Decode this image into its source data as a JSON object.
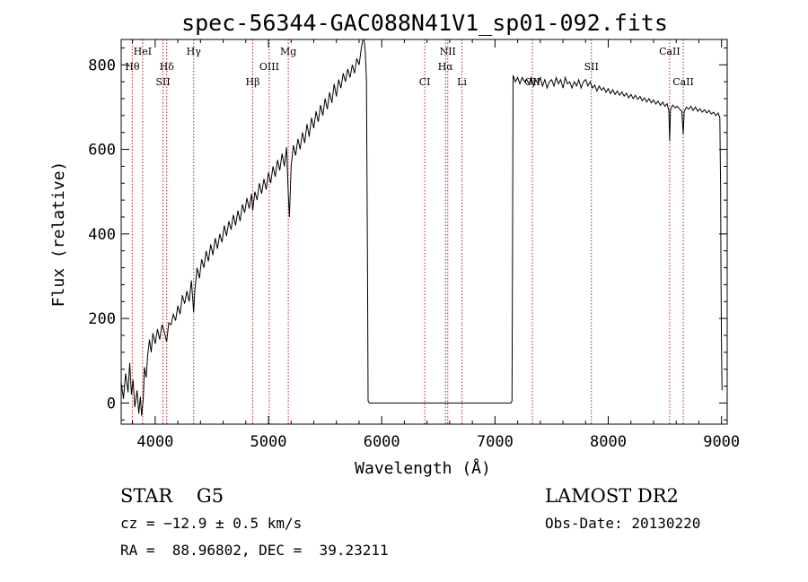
{
  "chart_data": {
    "type": "line",
    "title": "spec-56344-GAC088N41V1_sp01-092.fits",
    "xlabel": "Wavelength (Å)",
    "ylabel": "Flux (relative)",
    "xlim": [
      3700,
      9050
    ],
    "ylim": [
      -50,
      860
    ],
    "x_ticks": [
      4000,
      5000,
      6000,
      7000,
      8000,
      9000
    ],
    "y_ticks": [
      0,
      200,
      400,
      600,
      800
    ],
    "grid": false,
    "legend": "none",
    "colors": {
      "spectrum": "#000000",
      "line_markers": "#b22222"
    },
    "series": [
      {
        "points": [
          [
            3700,
            50
          ],
          [
            3720,
            10
          ],
          [
            3740,
            70
          ],
          [
            3760,
            25
          ],
          [
            3775,
            95
          ],
          [
            3790,
            20
          ],
          [
            3805,
            55
          ],
          [
            3820,
            -10
          ],
          [
            3840,
            30
          ],
          [
            3855,
            -25
          ],
          [
            3870,
            15
          ],
          [
            3880,
            -30
          ],
          [
            3895,
            10
          ],
          [
            3905,
            85
          ],
          [
            3920,
            60
          ],
          [
            3935,
            115
          ],
          [
            3950,
            150
          ],
          [
            3965,
            120
          ],
          [
            3980,
            165
          ],
          [
            4000,
            140
          ],
          [
            4020,
            175
          ],
          [
            4040,
            150
          ],
          [
            4060,
            185
          ],
          [
            4080,
            170
          ],
          [
            4101,
            145
          ],
          [
            4120,
            190
          ],
          [
            4140,
            185
          ],
          [
            4160,
            210
          ],
          [
            4180,
            195
          ],
          [
            4200,
            230
          ],
          [
            4220,
            210
          ],
          [
            4240,
            255
          ],
          [
            4260,
            235
          ],
          [
            4280,
            265
          ],
          [
            4300,
            240
          ],
          [
            4320,
            290
          ],
          [
            4340,
            215
          ],
          [
            4350,
            265
          ],
          [
            4370,
            320
          ],
          [
            4390,
            295
          ],
          [
            4410,
            340
          ],
          [
            4430,
            320
          ],
          [
            4450,
            360
          ],
          [
            4470,
            335
          ],
          [
            4490,
            375
          ],
          [
            4510,
            350
          ],
          [
            4530,
            390
          ],
          [
            4550,
            365
          ],
          [
            4570,
            400
          ],
          [
            4590,
            380
          ],
          [
            4610,
            420
          ],
          [
            4630,
            395
          ],
          [
            4650,
            430
          ],
          [
            4670,
            410
          ],
          [
            4690,
            445
          ],
          [
            4710,
            420
          ],
          [
            4730,
            455
          ],
          [
            4750,
            430
          ],
          [
            4770,
            470
          ],
          [
            4790,
            450
          ],
          [
            4810,
            485
          ],
          [
            4830,
            460
          ],
          [
            4850,
            495
          ],
          [
            4861,
            455
          ],
          [
            4880,
            500
          ],
          [
            4900,
            480
          ],
          [
            4920,
            520
          ],
          [
            4940,
            495
          ],
          [
            4960,
            530
          ],
          [
            4980,
            505
          ],
          [
            5000,
            545
          ],
          [
            5020,
            520
          ],
          [
            5040,
            560
          ],
          [
            5060,
            535
          ],
          [
            5080,
            575
          ],
          [
            5100,
            550
          ],
          [
            5120,
            590
          ],
          [
            5140,
            560
          ],
          [
            5160,
            605
          ],
          [
            5175,
            495
          ],
          [
            5185,
            440
          ],
          [
            5200,
            560
          ],
          [
            5220,
            610
          ],
          [
            5240,
            585
          ],
          [
            5260,
            625
          ],
          [
            5280,
            600
          ],
          [
            5300,
            640
          ],
          [
            5320,
            615
          ],
          [
            5340,
            660
          ],
          [
            5360,
            630
          ],
          [
            5380,
            675
          ],
          [
            5400,
            650
          ],
          [
            5420,
            690
          ],
          [
            5440,
            665
          ],
          [
            5460,
            705
          ],
          [
            5480,
            680
          ],
          [
            5500,
            720
          ],
          [
            5520,
            695
          ],
          [
            5540,
            735
          ],
          [
            5560,
            710
          ],
          [
            5580,
            755
          ],
          [
            5600,
            725
          ],
          [
            5620,
            765
          ],
          [
            5640,
            745
          ],
          [
            5660,
            780
          ],
          [
            5680,
            760
          ],
          [
            5700,
            790
          ],
          [
            5720,
            770
          ],
          [
            5740,
            800
          ],
          [
            5760,
            780
          ],
          [
            5780,
            815
          ],
          [
            5800,
            800
          ],
          [
            5820,
            840
          ],
          [
            5840,
            870
          ],
          [
            5855,
            830
          ],
          [
            5865,
            760
          ],
          [
            5875,
            300
          ],
          [
            5880,
            5
          ],
          [
            5890,
            0
          ],
          [
            6500,
            0
          ],
          [
            7000,
            0
          ],
          [
            7140,
            0
          ],
          [
            7150,
            5
          ],
          [
            7155,
            370
          ],
          [
            7160,
            775
          ],
          [
            7180,
            760
          ],
          [
            7200,
            770
          ],
          [
            7220,
            755
          ],
          [
            7240,
            770
          ],
          [
            7260,
            760
          ],
          [
            7280,
            765
          ],
          [
            7300,
            755
          ],
          [
            7320,
            770
          ],
          [
            7340,
            750
          ],
          [
            7360,
            765
          ],
          [
            7380,
            755
          ],
          [
            7400,
            770
          ],
          [
            7420,
            750
          ],
          [
            7440,
            765
          ],
          [
            7460,
            745
          ],
          [
            7480,
            760
          ],
          [
            7500,
            765
          ],
          [
            7520,
            750
          ],
          [
            7540,
            770
          ],
          [
            7560,
            755
          ],
          [
            7580,
            765
          ],
          [
            7600,
            745
          ],
          [
            7620,
            770
          ],
          [
            7640,
            755
          ],
          [
            7660,
            760
          ],
          [
            7680,
            745
          ],
          [
            7700,
            760
          ],
          [
            7720,
            750
          ],
          [
            7740,
            765
          ],
          [
            7760,
            745
          ],
          [
            7780,
            760
          ],
          [
            7800,
            765
          ],
          [
            7820,
            750
          ],
          [
            7840,
            760
          ],
          [
            7860,
            745
          ],
          [
            7880,
            752
          ],
          [
            7900,
            738
          ],
          [
            7920,
            750
          ],
          [
            7940,
            740
          ],
          [
            7960,
            746
          ],
          [
            7980,
            735
          ],
          [
            8000,
            744
          ],
          [
            8020,
            732
          ],
          [
            8040,
            741
          ],
          [
            8060,
            730
          ],
          [
            8080,
            738
          ],
          [
            8100,
            728
          ],
          [
            8120,
            736
          ],
          [
            8140,
            726
          ],
          [
            8160,
            733
          ],
          [
            8180,
            722
          ],
          [
            8200,
            730
          ],
          [
            8220,
            720
          ],
          [
            8240,
            728
          ],
          [
            8260,
            718
          ],
          [
            8280,
            725
          ],
          [
            8300,
            715
          ],
          [
            8320,
            722
          ],
          [
            8340,
            712
          ],
          [
            8360,
            720
          ],
          [
            8380,
            710
          ],
          [
            8400,
            717
          ],
          [
            8420,
            707
          ],
          [
            8440,
            714
          ],
          [
            8460,
            704
          ],
          [
            8480,
            712
          ],
          [
            8500,
            702
          ],
          [
            8520,
            708
          ],
          [
            8535,
            690
          ],
          [
            8542,
            620
          ],
          [
            8550,
            695
          ],
          [
            8570,
            705
          ],
          [
            8590,
            698
          ],
          [
            8610,
            702
          ],
          [
            8630,
            695
          ],
          [
            8650,
            690
          ],
          [
            8662,
            635
          ],
          [
            8670,
            690
          ],
          [
            8690,
            700
          ],
          [
            8710,
            695
          ],
          [
            8730,
            702
          ],
          [
            8750,
            692
          ],
          [
            8770,
            700
          ],
          [
            8790,
            690
          ],
          [
            8810,
            696
          ],
          [
            8830,
            688
          ],
          [
            8850,
            694
          ],
          [
            8870,
            686
          ],
          [
            8890,
            692
          ],
          [
            8910,
            684
          ],
          [
            8930,
            688
          ],
          [
            8950,
            680
          ],
          [
            8970,
            686
          ],
          [
            8985,
            675
          ],
          [
            8992,
            500
          ],
          [
            8995,
            300
          ],
          [
            9000,
            120
          ],
          [
            9005,
            30
          ]
        ]
      }
    ],
    "spectral_lines": [
      {
        "label": "Hθ",
        "wavelength": 3798,
        "row": 2
      },
      {
        "label": "HeI",
        "wavelength": 3889,
        "row": 1
      },
      {
        "label": "SII",
        "wavelength": 4069,
        "row": 3
      },
      {
        "label": "Hδ",
        "wavelength": 4102,
        "row": 2
      },
      {
        "label": "Hγ",
        "wavelength": 4340,
        "row": 1
      },
      {
        "label": "Hβ",
        "wavelength": 4861,
        "row": 3
      },
      {
        "label": "OIII",
        "wavelength": 5007,
        "row": 2
      },
      {
        "label": "Mg",
        "wavelength": 5175,
        "row": 1
      },
      {
        "label": "CI",
        "wavelength": 6380,
        "row": 3
      },
      {
        "label": "NII",
        "wavelength": 6583,
        "row": 1
      },
      {
        "label": "Hα",
        "wavelength": 6563,
        "row": 2
      },
      {
        "label": "Li",
        "wavelength": 6708,
        "row": 3
      },
      {
        "label": "OII",
        "wavelength": 7330,
        "row": 3
      },
      {
        "label": "SII",
        "wavelength": 7851,
        "row": 2
      },
      {
        "label": "CaII",
        "wavelength": 8542,
        "row": 1
      },
      {
        "label": "CaII",
        "wavelength": 8662,
        "row": 3
      }
    ]
  },
  "info": {
    "class_line": "STAR    G5",
    "cz_line": "cz = −12.9 ± 0.5 km/s",
    "coord_line": "RA =  88.96802, DEC =  39.23211",
    "survey": "LAMOST DR2",
    "obs_date": "Obs-Date: 20130220"
  }
}
